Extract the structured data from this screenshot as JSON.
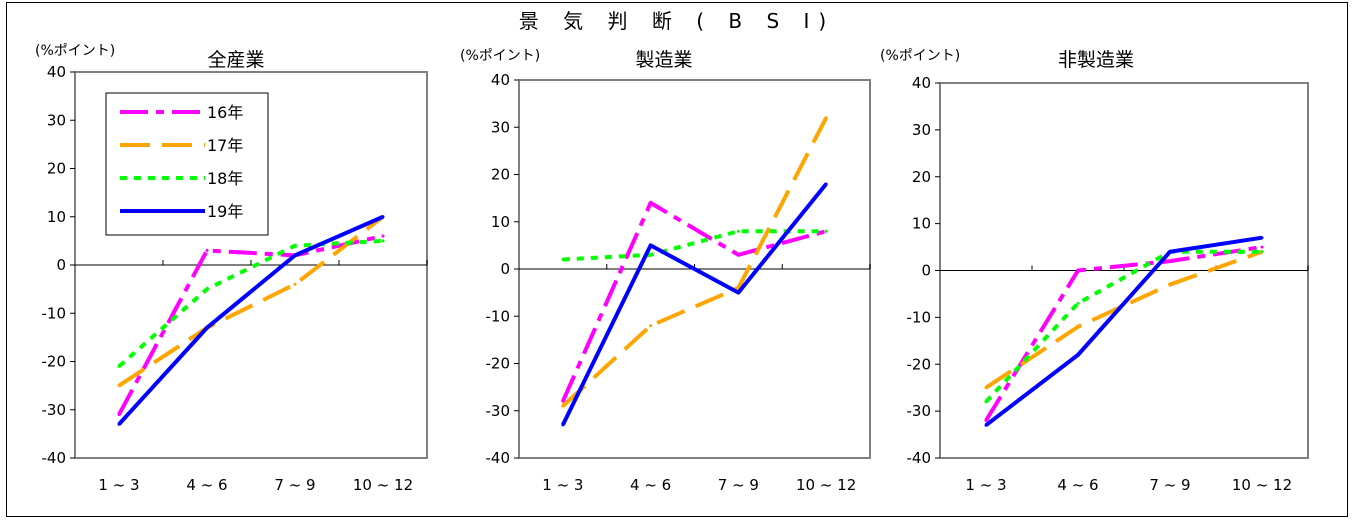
{
  "figure_title": "景 気 判 断 ( B S I)",
  "chart_data": [
    {
      "type": "line",
      "title": "全産業",
      "ylabel": "(%ポイント)",
      "xlabel": "",
      "categories": [
        "1 ~ 3",
        "4 ~ 6",
        "7 ~ 9",
        "10 ~ 12"
      ],
      "ylim": [
        -40,
        40
      ],
      "yticks": [
        -40,
        -30,
        -20,
        -10,
        0,
        10,
        20,
        30,
        40
      ],
      "grid": false,
      "legend": "top-left",
      "series": [
        {
          "name": "16年",
          "values": [
            -31,
            3,
            2,
            6
          ]
        },
        {
          "name": "17年",
          "values": [
            -25,
            -13,
            -4,
            10
          ]
        },
        {
          "name": "18年",
          "values": [
            -21,
            -5,
            4,
            5
          ]
        },
        {
          "name": "19年",
          "values": [
            -33,
            -13,
            2,
            10
          ]
        }
      ]
    },
    {
      "type": "line",
      "title": "製造業",
      "ylabel": "(%ポイント)",
      "xlabel": "",
      "categories": [
        "1 ~ 3",
        "4 ~ 6",
        "7 ~ 9",
        "10 ~ 12"
      ],
      "ylim": [
        -40,
        40
      ],
      "yticks": [
        -40,
        -30,
        -20,
        -10,
        0,
        10,
        20,
        30,
        40
      ],
      "grid": false,
      "legend": "none",
      "series": [
        {
          "name": "16年",
          "values": [
            -28,
            14,
            3,
            8
          ]
        },
        {
          "name": "17年",
          "values": [
            -29,
            -12,
            -4,
            32
          ]
        },
        {
          "name": "18年",
          "values": [
            2,
            3,
            8,
            8
          ]
        },
        {
          "name": "19年",
          "values": [
            -33,
            5,
            -5,
            18
          ]
        }
      ]
    },
    {
      "type": "line",
      "title": "非製造業",
      "ylabel": "(%ポイント)",
      "xlabel": "",
      "categories": [
        "1 ~ 3",
        "4 ~ 6",
        "7 ~ 9",
        "10 ~ 12"
      ],
      "ylim": [
        -40,
        40
      ],
      "yticks": [
        -40,
        -30,
        -20,
        -10,
        0,
        10,
        20,
        30,
        40
      ],
      "grid": false,
      "legend": "none",
      "series": [
        {
          "name": "16年",
          "values": [
            -32,
            0,
            2,
            5
          ]
        },
        {
          "name": "17年",
          "values": [
            -25,
            -12,
            -3,
            4
          ]
        },
        {
          "name": "18年",
          "values": [
            -28,
            -7,
            4,
            4
          ]
        },
        {
          "name": "19年",
          "values": [
            -33,
            -18,
            4,
            7
          ]
        }
      ]
    }
  ],
  "series_styles": [
    {
      "name": "16年",
      "color": "#ff00ff",
      "dash": "long-dash-dot"
    },
    {
      "name": "17年",
      "color": "#ffa500",
      "dash": "long-dash"
    },
    {
      "name": "18年",
      "color": "#00ff00",
      "dash": "dotted"
    },
    {
      "name": "19年",
      "color": "#0000ff",
      "dash": "solid"
    }
  ]
}
